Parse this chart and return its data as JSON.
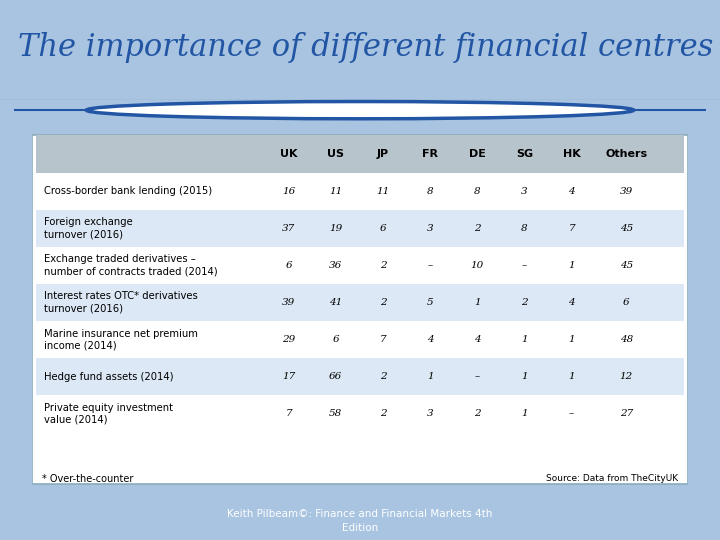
{
  "title": "The importance of different financial centres",
  "subtitle_footer": "Keith Pilbeam©: Finance and Financial Markets 4th\nEdition",
  "source_text": "Source: Data from TheCityUK",
  "footnote": "* Over-the-counter",
  "columns": [
    "",
    "UK",
    "US",
    "JP",
    "FR",
    "DE",
    "SG",
    "HK",
    "Others"
  ],
  "rows": [
    [
      "Cross-border bank lending (2015)",
      "16",
      "11",
      "11",
      "8",
      "8",
      "3",
      "4",
      "39"
    ],
    [
      "Foreign exchange\nturnover (2016)",
      "37",
      "19",
      "6",
      "3",
      "2",
      "8",
      "7",
      "45"
    ],
    [
      "Exchange traded derivatives –\nnumber of contracts traded (2014)",
      "6",
      "36",
      "2",
      "–",
      "10",
      "–",
      "1",
      "45"
    ],
    [
      "Interest rates OTC* derivatives\nturnover (2016)",
      "39",
      "41",
      "2",
      "5",
      "1",
      "2",
      "4",
      "6"
    ],
    [
      "Marine insurance net premium\nincome (2014)",
      "29",
      "6",
      "7",
      "4",
      "4",
      "1",
      "1",
      "48"
    ],
    [
      "Hedge fund assets (2014)",
      "17",
      "66",
      "2",
      "1",
      "–",
      "1",
      "1",
      "12"
    ],
    [
      "Private equity investment\nvalue (2014)",
      "7",
      "58",
      "2",
      "3",
      "2",
      "1",
      "–",
      "27"
    ]
  ],
  "bg_color": "#a8c4e0",
  "table_outer_bg": "#ffffff",
  "header_bg": "#b8c4cc",
  "row_even_bg": "#ffffff",
  "row_odd_bg": "#dce8f5",
  "title_color": "#2255a4",
  "title_fontsize": 22,
  "footer_bg": "#2a5caa",
  "footer_color": "#ffffff",
  "circle_color": "#2255a4",
  "line_color": "#2255a4",
  "border_color": "#8aaabb"
}
